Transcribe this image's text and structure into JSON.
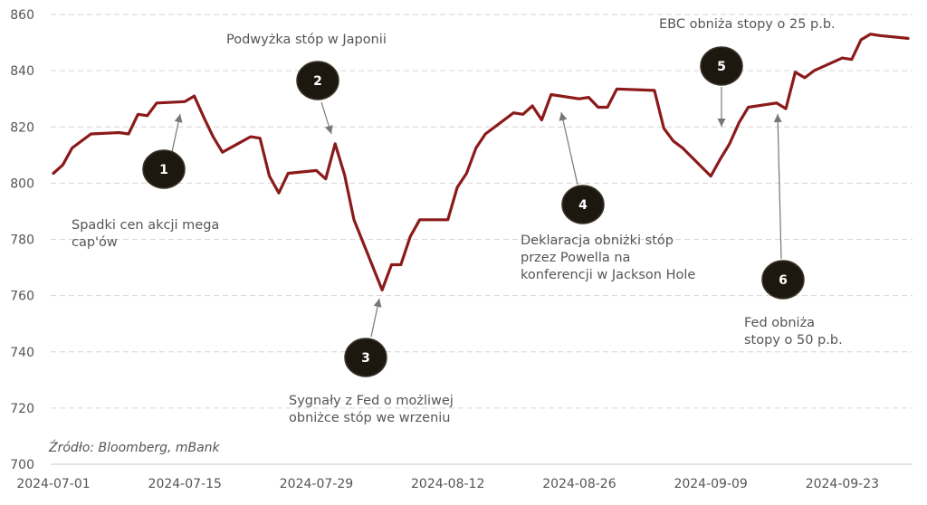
{
  "chart_data": {
    "type": "line",
    "title": "",
    "xlabel": "",
    "ylabel": "",
    "ylim": [
      700,
      860
    ],
    "y_ticks": [
      700,
      720,
      740,
      760,
      780,
      800,
      820,
      840,
      860
    ],
    "x_tick_labels": [
      "2024-07-01",
      "2024-07-15",
      "2024-07-29",
      "2024-08-12",
      "2024-08-26",
      "2024-09-09",
      "2024-09-23"
    ],
    "grid": "horizontal dashed",
    "line_color": "#8b1a1a",
    "series": [
      {
        "x": [
          "2024-07-01",
          "2024-07-02",
          "2024-07-03",
          "2024-07-05",
          "2024-07-08",
          "2024-07-09",
          "2024-07-10",
          "2024-07-11",
          "2024-07-12",
          "2024-07-15",
          "2024-07-16",
          "2024-07-17",
          "2024-07-18",
          "2024-07-19",
          "2024-07-22",
          "2024-07-23",
          "2024-07-24",
          "2024-07-25",
          "2024-07-26",
          "2024-07-29",
          "2024-07-30",
          "2024-07-31",
          "2024-08-01",
          "2024-08-02",
          "2024-08-05",
          "2024-08-06",
          "2024-08-07",
          "2024-08-08",
          "2024-08-09",
          "2024-08-12",
          "2024-08-13",
          "2024-08-14",
          "2024-08-15",
          "2024-08-16",
          "2024-08-19",
          "2024-08-20",
          "2024-08-21",
          "2024-08-22",
          "2024-08-23",
          "2024-08-26",
          "2024-08-27",
          "2024-08-28",
          "2024-08-29",
          "2024-08-30",
          "2024-09-03",
          "2024-09-04",
          "2024-09-05",
          "2024-09-06",
          "2024-09-09",
          "2024-09-10",
          "2024-09-11",
          "2024-09-12",
          "2024-09-13",
          "2024-09-16",
          "2024-09-17",
          "2024-09-18",
          "2024-09-19",
          "2024-09-20",
          "2024-09-23",
          "2024-09-24",
          "2024-09-25",
          "2024-09-26",
          "2024-09-27",
          "2024-09-30"
        ],
        "values": [
          803.5,
          806.5,
          812.5,
          817.5,
          818,
          817.5,
          824.5,
          824,
          828.5,
          829,
          831,
          823.5,
          816.5,
          811,
          816.5,
          816,
          802.5,
          796.5,
          803.5,
          804.5,
          801.5,
          814,
          803,
          787,
          762,
          771,
          771,
          781,
          787,
          787,
          798.5,
          803.5,
          812.5,
          817.5,
          825,
          824.5,
          827.5,
          822.5,
          831.5,
          830,
          830.5,
          827,
          827,
          833.5,
          833,
          819.5,
          815,
          812.5,
          802.5,
          808.5,
          814,
          821.5,
          827,
          828.5,
          826.5,
          839.5,
          837.5,
          840,
          844.5,
          844,
          851,
          853,
          852.5,
          851.5
        ]
      }
    ],
    "annotations": [
      {
        "marker": "1",
        "text": "Spadki cen akcji mega cap'ów",
        "lines": [
          "Spadki cen akcji mega",
          "cap'ów"
        ]
      },
      {
        "marker": "2",
        "text": "Podwyżka stóp w Japonii",
        "lines": [
          "Podwyżka stóp w Japonii"
        ]
      },
      {
        "marker": "3",
        "text": "Sygnały z Fed o możliwej obniżce stóp we wrzeniu",
        "lines": [
          "Sygnały z Fed o możliwej",
          "obniżce stóp we wrzeniu"
        ]
      },
      {
        "marker": "4",
        "text": "Deklaracja obniżki stóp przez Powella na konferencji w Jackson Hole",
        "lines": [
          "Deklaracja obniżki stóp",
          "przez Powella na",
          "konferencji w Jackson Hole"
        ]
      },
      {
        "marker": "5",
        "text": "EBC obniża stopy o 25 p.b.",
        "lines": [
          "EBC obniża stopy o 25 p.b."
        ]
      },
      {
        "marker": "6",
        "text": "Fed obniża stopy o 50 p.b.",
        "lines": [
          "Fed obniża",
          "stopy o 50 p.b."
        ]
      }
    ]
  },
  "source": "Źródło: Bloomberg, mBank"
}
